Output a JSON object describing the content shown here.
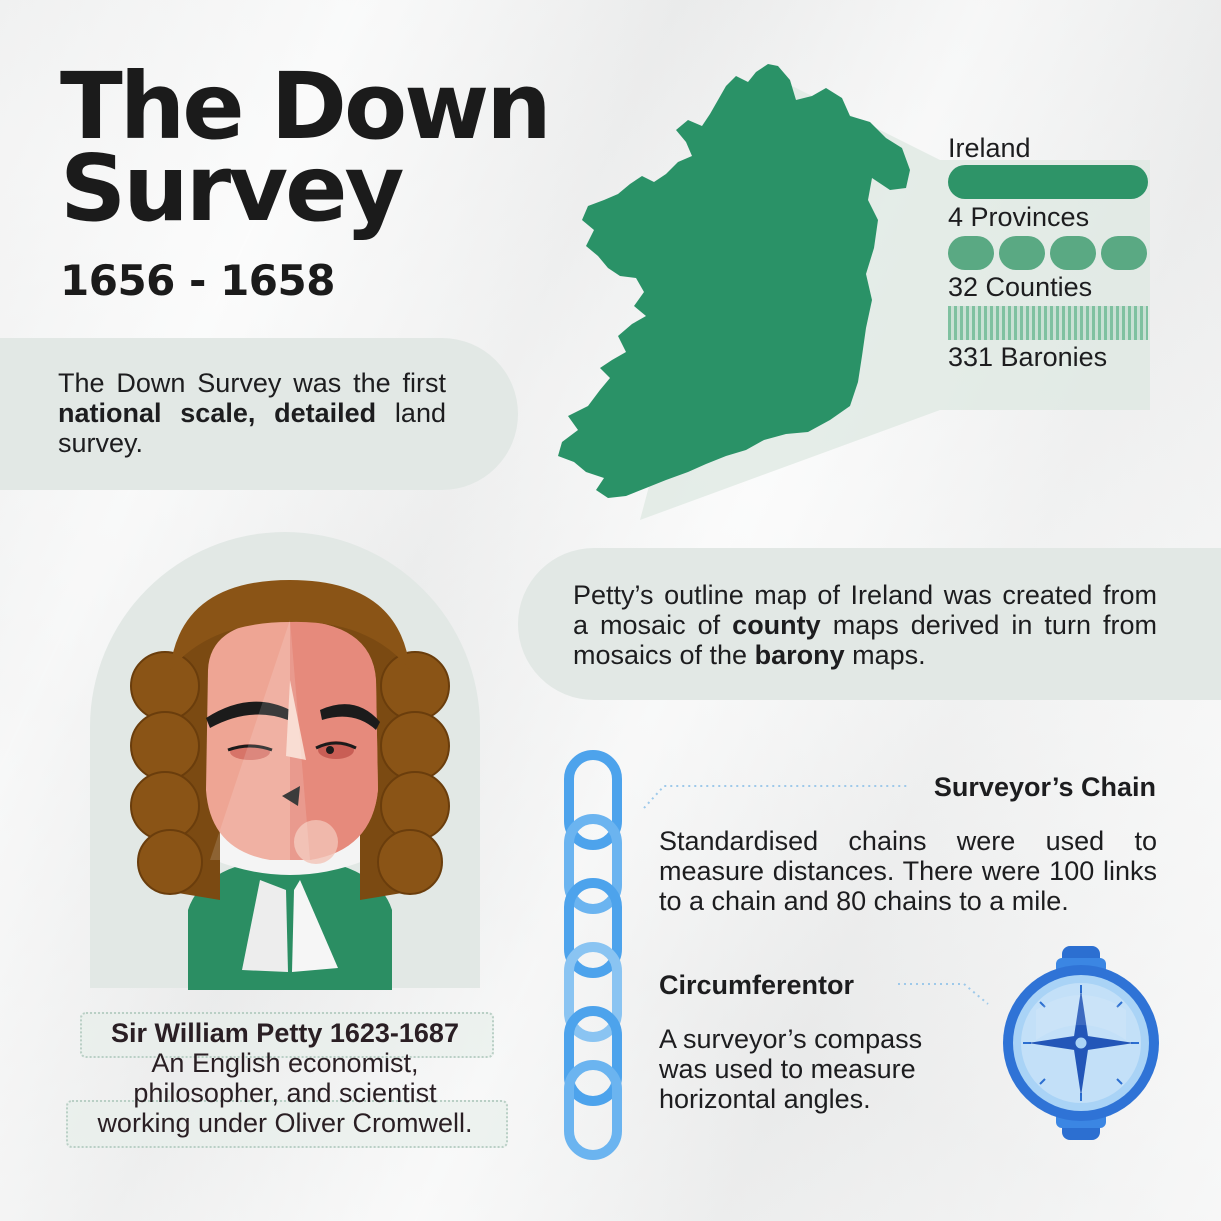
{
  "header": {
    "title_line1": "The Down",
    "title_line2": "Survey",
    "dates": "1656 - 1658"
  },
  "intro": {
    "part1": "The Down Survey was the first ",
    "bold": "national scale, detailed",
    "part2": " land survey."
  },
  "stats": {
    "ireland": "Ireland",
    "provinces": "4 Provinces",
    "counties": "32 Counties",
    "baronies": "331 Baronies"
  },
  "petty_map": {
    "part1": "Petty’s outline map of Ireland was created from a mosaic of ",
    "bold1": "county",
    "part2": " maps derived in turn from mosaics of the ",
    "bold2": "barony",
    "part3": " maps."
  },
  "portrait": {
    "name": "Sir William Petty 1623-1687",
    "line2": "An English economist,",
    "line3": "philosopher, and scientist",
    "line4": "working under Oliver Cromwell."
  },
  "chain": {
    "title": "Surveyor’s Chain",
    "text": "Standardised chains were used to measure distances. There were 100 links to a chain and 80 chains to a mile."
  },
  "circumferentor": {
    "title": "Circumferentor",
    "text": "A surveyor’s compass was used to measure horizontal angles."
  },
  "colors": {
    "green": "#2e9468",
    "mint": "#e2e8e5",
    "blue": "#3b8fe0"
  },
  "icons": [
    "ireland-map-icon",
    "surveyor-chain-icon",
    "compass-icon",
    "portrait-illustration"
  ]
}
